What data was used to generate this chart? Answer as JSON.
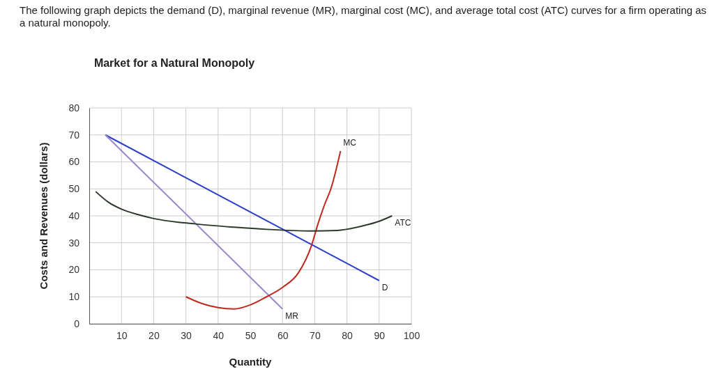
{
  "chart_data": {
    "type": "line",
    "title": "Market for a Natural Monopoly",
    "xlabel": "Quantity",
    "ylabel": "Costs and Revenues (dollars)",
    "annotations": [
      "The following graph depicts the demand (D), marginal revenue (MR), marginal cost (MC), and average total cost (ATC) curves for a firm operating as a natural monopoly."
    ],
    "xlim": [
      0,
      100
    ],
    "ylim": [
      0,
      80
    ],
    "xticks": [
      10,
      20,
      30,
      40,
      50,
      60,
      70,
      80,
      90,
      100
    ],
    "yticks": [
      0,
      10,
      20,
      30,
      40,
      50,
      60,
      70,
      80
    ],
    "grid": true,
    "marker": "none",
    "line_style": "solid",
    "series": [
      {
        "name": "D",
        "color": "#2b3fc8",
        "x": [
          5,
          90
        ],
        "values": [
          70,
          16
        ]
      },
      {
        "name": "MR",
        "color": "#9b84d0",
        "x": [
          5,
          60
        ],
        "values": [
          70,
          5.5
        ]
      },
      {
        "name": "MC",
        "color": "#c0281e",
        "x": [
          30,
          35,
          40,
          45,
          50,
          55,
          60,
          65,
          69,
          71,
          73,
          75,
          78
        ],
        "values": [
          10,
          7.5,
          6,
          5.5,
          7,
          10,
          13.5,
          19,
          29,
          37,
          44,
          50,
          64
        ]
      },
      {
        "name": "ATC",
        "color": "#2a3a2a",
        "x": [
          2,
          6,
          10,
          15,
          20,
          33,
          45,
          55,
          69,
          77,
          85,
          90,
          94
        ],
        "values": [
          49,
          45,
          42.5,
          40.5,
          39,
          37,
          35.8,
          35,
          34.4,
          34.6,
          36.3,
          38,
          40
        ]
      }
    ]
  }
}
